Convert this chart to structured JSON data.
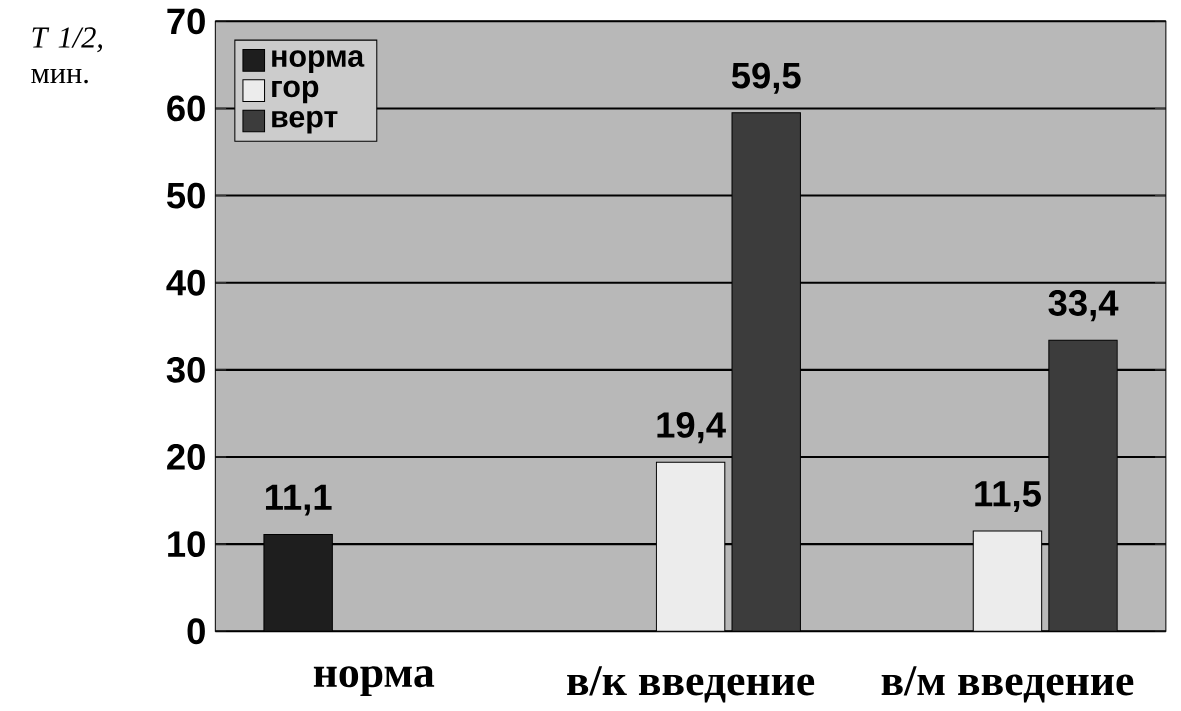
{
  "chart_data": {
    "type": "bar",
    "ylabel": "*T 1/2,* мин.",
    "categories": [
      "норма",
      "в/к введение",
      "в/м введение"
    ],
    "series": [
      {
        "name": "норма",
        "color": "#1e1e1e",
        "values": [
          11.1,
          null,
          null
        ],
        "value_labels": [
          "11,1",
          null,
          null
        ]
      },
      {
        "name": "гор",
        "color": "#ececec",
        "values": [
          null,
          19.4,
          11.5
        ],
        "value_labels": [
          null,
          "19,4",
          "11,5"
        ]
      },
      {
        "name": "верт",
        "color": "#3c3c3c",
        "values": [
          null,
          59.5,
          33.4
        ],
        "value_labels": [
          null,
          "59,5",
          "33,4"
        ]
      }
    ],
    "ylim": [
      0,
      70
    ],
    "yticks": [
      0,
      10,
      20,
      30,
      40,
      50,
      60,
      70
    ],
    "grid": "y",
    "legend": "top left"
  }
}
